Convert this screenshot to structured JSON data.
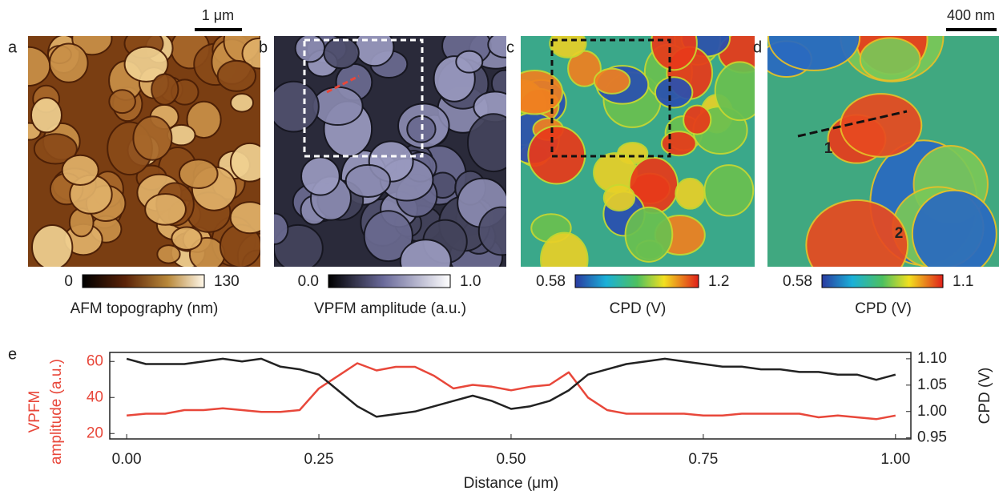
{
  "scale_bars": [
    "1 μm",
    "400 nm"
  ],
  "panels": [
    {
      "letter": "a",
      "colorbar": {
        "min": "0",
        "max": "130",
        "label": "AFM topography (nm)"
      }
    },
    {
      "letter": "b",
      "colorbar": {
        "min": "0.0",
        "max": "1.0",
        "label": "VPFM amplitude (a.u.)"
      }
    },
    {
      "letter": "c",
      "colorbar": {
        "min": "0.58",
        "max": "1.2",
        "label": "CPD (V)"
      }
    },
    {
      "letter": "d",
      "colorbar": {
        "min": "0.58",
        "max": "1.1",
        "label": "CPD (V)"
      },
      "annotations": [
        "1",
        "2"
      ]
    }
  ],
  "chart_data": {
    "type": "line",
    "letter": "e",
    "xlabel": "Distance (μm)",
    "ylabel": [
      "VPFM",
      "amplitude (a.u.)"
    ],
    "y2label": "CPD (V)",
    "xlim": [
      -0.022,
      1.02
    ],
    "xticks": [
      {
        "value": 0,
        "label": "0.00"
      },
      {
        "value": 0.25,
        "label": "0.25"
      },
      {
        "value": 0.5,
        "label": "0.50"
      },
      {
        "value": 0.75,
        "label": "0.75"
      },
      {
        "value": 1,
        "label": "1.00"
      }
    ],
    "ylim": [
      17,
      65
    ],
    "yticks": [
      20,
      40,
      60
    ],
    "y2lim": [
      0.948,
      1.112
    ],
    "y2ticks": [
      0.95,
      {
        "value": 1,
        "label": "1.00"
      },
      1.05,
      {
        "value": 1.1,
        "label": "1.10"
      }
    ],
    "x": [
      0,
      0.025,
      0.05,
      0.075,
      0.1,
      0.125,
      0.15,
      0.175,
      0.2,
      0.225,
      0.25,
      0.275,
      0.3,
      0.325,
      0.35,
      0.375,
      0.4,
      0.425,
      0.45,
      0.475,
      0.5,
      0.525,
      0.55,
      0.575,
      0.6,
      0.625,
      0.65,
      0.675,
      0.7,
      0.725,
      0.75,
      0.775,
      0.8,
      0.825,
      0.85,
      0.875,
      0.9,
      0.925,
      0.95,
      0.975,
      1.0
    ],
    "series": [
      {
        "color": "#e8473a",
        "axis": "y",
        "values": [
          30,
          31,
          31,
          33,
          33,
          34,
          33,
          32,
          32,
          33,
          45,
          52,
          59,
          55,
          57,
          57,
          52,
          45,
          47,
          46,
          44,
          46,
          47,
          54,
          40,
          33,
          31,
          31,
          31,
          31,
          30,
          30,
          31,
          31,
          31,
          31,
          29,
          30,
          29,
          28,
          30
        ]
      },
      {
        "color": "#222222",
        "axis": "y2",
        "values": [
          1.1,
          1.09,
          1.09,
          1.09,
          1.095,
          1.1,
          1.095,
          1.1,
          1.085,
          1.08,
          1.07,
          1.04,
          1.01,
          0.99,
          0.995,
          1.0,
          1.01,
          1.02,
          1.03,
          1.02,
          1.005,
          1.01,
          1.02,
          1.04,
          1.07,
          1.08,
          1.09,
          1.095,
          1.1,
          1.095,
          1.09,
          1.085,
          1.085,
          1.08,
          1.08,
          1.075,
          1.075,
          1.07,
          1.07,
          1.06,
          1.07
        ]
      }
    ]
  }
}
